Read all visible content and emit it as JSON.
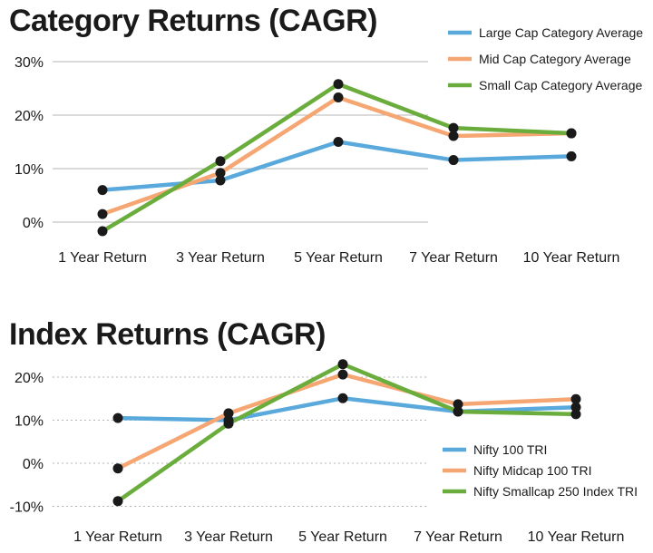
{
  "chart_data": [
    {
      "type": "line",
      "title": "Category Returns (CAGR)",
      "categories": [
        "1 Year Return",
        "3 Year Return",
        "5 Year Return",
        "7 Year Return",
        "10 Year Return"
      ],
      "y_ticks": [
        "30%",
        "20%",
        "10%",
        "0%"
      ],
      "y_tick_values": [
        30,
        20,
        10,
        0
      ],
      "ylim": [
        -2,
        30
      ],
      "grid": "horizontal",
      "legend_position": "top-right",
      "series": [
        {
          "name": "Large Cap Category Average",
          "color": "#5aa9dc",
          "values": [
            6.0,
            7.8,
            15.0,
            11.6,
            12.3
          ]
        },
        {
          "name": "Mid Cap Category Average",
          "color": "#f5a672",
          "values": [
            1.5,
            9.2,
            23.3,
            16.1,
            16.6
          ]
        },
        {
          "name": "Small Cap Category Average",
          "color": "#6aad3c",
          "values": [
            -1.7,
            11.4,
            25.8,
            17.6,
            16.6
          ]
        }
      ]
    },
    {
      "type": "line",
      "title": "Index Returns (CAGR)",
      "categories": [
        "1 Year Return",
        "3 Year Return",
        "5 Year Return",
        "7 Year Return",
        "10 Year Return"
      ],
      "y_ticks": [
        "20%",
        "10%",
        "0%",
        "-10%"
      ],
      "y_tick_values": [
        20,
        10,
        0,
        -10
      ],
      "ylim": [
        -10,
        23
      ],
      "grid": "horizontal",
      "legend_position": "bottom-right",
      "series": [
        {
          "name": "Nifty 100 TRI",
          "color": "#5aa9dc",
          "values": [
            10.5,
            10.0,
            15.1,
            12.0,
            13.0
          ]
        },
        {
          "name": "Nifty Midcap 100 TRI",
          "color": "#f5a672",
          "values": [
            -1.2,
            11.6,
            20.6,
            13.7,
            14.9
          ]
        },
        {
          "name": "Nifty Smallcap 250 Index TRI",
          "color": "#6aad3c",
          "values": [
            -8.8,
            9.2,
            23.0,
            12.0,
            11.4
          ]
        }
      ]
    }
  ]
}
